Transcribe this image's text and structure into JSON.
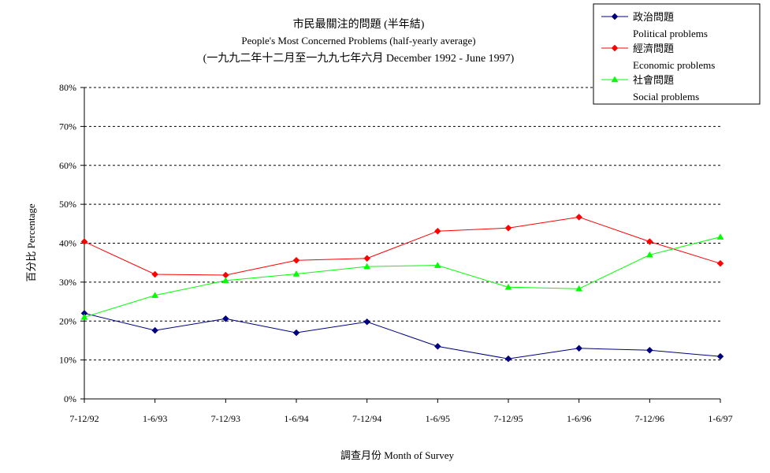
{
  "chart_data": {
    "type": "line",
    "title": "市民最關注的問題 (半年結)",
    "subtitle": "People's Most Concerned Problems (half-yearly average)",
    "subtitle2": "(一九九二年十二月至一九九七年六月 December 1992 - June 1997)",
    "xlabel": "調查月份 Month of Survey",
    "ylabel": "百分比 Percentage",
    "categories": [
      "7-12/92",
      "1-6/93",
      "7-12/93",
      "1-6/94",
      "7-12/94",
      "1-6/95",
      "7-12/95",
      "1-6/96",
      "7-12/96",
      "1-6/97"
    ],
    "ylim": [
      0,
      80
    ],
    "yticks": [
      0,
      10,
      20,
      30,
      40,
      50,
      60,
      70,
      80
    ],
    "ytick_labels": [
      "0%",
      "10%",
      "20%",
      "30%",
      "40%",
      "50%",
      "60%",
      "70%",
      "80%"
    ],
    "grid": "horizontal-dashed",
    "legend_position": "top-right",
    "series": [
      {
        "name": "政治問題",
        "name_en": "Political problems",
        "color": "#000080",
        "marker": "diamond",
        "values": [
          22.0,
          17.6,
          20.6,
          17.0,
          19.8,
          13.5,
          10.3,
          13.0,
          12.5,
          10.9
        ]
      },
      {
        "name": "經濟問題",
        "name_en": "Economic problems",
        "color": "#ff0000",
        "marker": "diamond",
        "values": [
          40.4,
          32.0,
          31.8,
          35.6,
          36.1,
          43.1,
          43.9,
          46.7,
          40.4,
          34.8
        ]
      },
      {
        "name": "社會問題",
        "name_en": "Social problems",
        "color": "#00ff00",
        "marker": "triangle",
        "values": [
          21.0,
          26.6,
          30.4,
          32.1,
          34.0,
          34.3,
          28.7,
          28.3,
          37.0,
          41.6
        ]
      }
    ]
  }
}
